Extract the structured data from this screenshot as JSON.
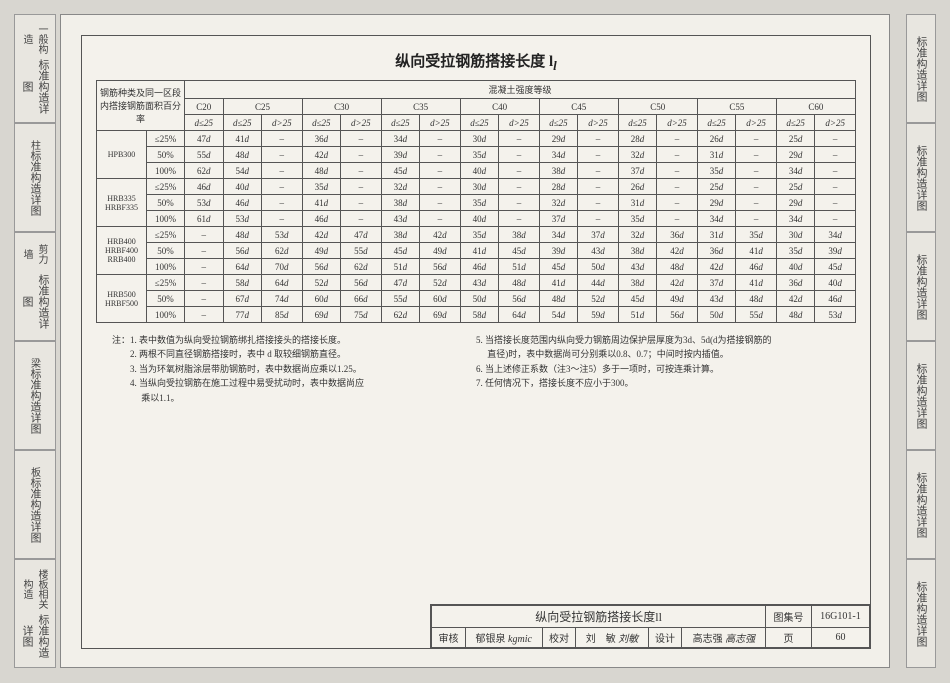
{
  "title_main": "纵向受拉钢筋搭接长度",
  "title_sym": "l",
  "title_sub": "l",
  "left_tabs": [
    {
      "main": "标准构造详图",
      "sub": "一般构造"
    },
    {
      "main": "标准构造详图",
      "sub": "柱"
    },
    {
      "main": "标准构造详图",
      "sub": "剪力墙"
    },
    {
      "main": "标准构造详图",
      "sub": "梁"
    },
    {
      "main": "标准构造详图",
      "sub": "板"
    },
    {
      "main": "标准构造详图",
      "sub": "楼板相关构造"
    }
  ],
  "right_tabs": [
    {
      "main": "标准构造详图"
    },
    {
      "main": "标准构造详图"
    },
    {
      "main": "标准构造详图"
    },
    {
      "main": "标准构造详图"
    },
    {
      "main": "标准构造详图"
    },
    {
      "main": "标准构造详图"
    }
  ],
  "header_label_1": "钢筋种类及同一区段内搭接钢筋面积百分率",
  "header_label_2": "混凝土强度等级",
  "grades": [
    "C20",
    "C25",
    "C30",
    "C35",
    "C40",
    "C45",
    "C50",
    "C55",
    "C60"
  ],
  "d_le": "d≤25",
  "d_gt": "d>25",
  "pct_25": "≤25%",
  "pct_50": "50%",
  "pct_100": "100%",
  "rows": [
    {
      "label": "HPB300",
      "pcts": [
        [
          "47d",
          "41d",
          "–",
          "36d",
          "–",
          "34d",
          "–",
          "30d",
          "–",
          "29d",
          "–",
          "28d",
          "–",
          "26d",
          "–",
          "25d",
          "–"
        ],
        [
          "55d",
          "48d",
          "–",
          "42d",
          "–",
          "39d",
          "–",
          "35d",
          "–",
          "34d",
          "–",
          "32d",
          "–",
          "31d",
          "–",
          "29d",
          "–"
        ],
        [
          "62d",
          "54d",
          "–",
          "48d",
          "–",
          "45d",
          "–",
          "40d",
          "–",
          "38d",
          "–",
          "37d",
          "–",
          "35d",
          "–",
          "34d",
          "–"
        ]
      ]
    },
    {
      "label": "HRB335\nHRBF335",
      "pcts": [
        [
          "46d",
          "40d",
          "–",
          "35d",
          "–",
          "32d",
          "–",
          "30d",
          "–",
          "28d",
          "–",
          "26d",
          "–",
          "25d",
          "–",
          "25d",
          "–"
        ],
        [
          "53d",
          "46d",
          "–",
          "41d",
          "–",
          "38d",
          "–",
          "35d",
          "–",
          "32d",
          "–",
          "31d",
          "–",
          "29d",
          "–",
          "29d",
          "–"
        ],
        [
          "61d",
          "53d",
          "–",
          "46d",
          "–",
          "43d",
          "–",
          "40d",
          "–",
          "37d",
          "–",
          "35d",
          "–",
          "34d",
          "–",
          "34d",
          "–"
        ]
      ]
    },
    {
      "label": "HRB400\nHRBF400\nRRB400",
      "pcts": [
        [
          "–",
          "48d",
          "53d",
          "42d",
          "47d",
          "38d",
          "42d",
          "35d",
          "38d",
          "34d",
          "37d",
          "32d",
          "36d",
          "31d",
          "35d",
          "30d",
          "34d"
        ],
        [
          "–",
          "56d",
          "62d",
          "49d",
          "55d",
          "45d",
          "49d",
          "41d",
          "45d",
          "39d",
          "43d",
          "38d",
          "42d",
          "36d",
          "41d",
          "35d",
          "39d"
        ],
        [
          "–",
          "64d",
          "70d",
          "56d",
          "62d",
          "51d",
          "56d",
          "46d",
          "51d",
          "45d",
          "50d",
          "43d",
          "48d",
          "42d",
          "46d",
          "40d",
          "45d"
        ]
      ]
    },
    {
      "label": "HRB500\nHRBF500",
      "pcts": [
        [
          "–",
          "58d",
          "64d",
          "52d",
          "56d",
          "47d",
          "52d",
          "43d",
          "48d",
          "41d",
          "44d",
          "38d",
          "42d",
          "37d",
          "41d",
          "36d",
          "40d"
        ],
        [
          "–",
          "67d",
          "74d",
          "60d",
          "66d",
          "55d",
          "60d",
          "50d",
          "56d",
          "48d",
          "52d",
          "45d",
          "49d",
          "43d",
          "48d",
          "42d",
          "46d"
        ],
        [
          "–",
          "77d",
          "85d",
          "69d",
          "75d",
          "62d",
          "69d",
          "58d",
          "64d",
          "54d",
          "59d",
          "51d",
          "56d",
          "50d",
          "55d",
          "48d",
          "53d"
        ]
      ]
    }
  ],
  "notes_left": [
    "注：1. 表中数值为纵向受拉钢筋绑扎搭接接头的搭接长度。",
    "　　2. 两根不同直径钢筋搭接时，表中 d 取较细钢筋直径。",
    "　　3. 当为环氧树脂涂层带肋钢筋时，表中数据尚应乘以1.25。",
    "　　4. 当纵向受拉钢筋在施工过程中易受扰动时，表中数据尚应",
    "　　　 乘以1.1。"
  ],
  "notes_right": [
    "5. 当搭接长度范围内纵向受力钢筋周边保护层厚度为3d、5d(d为搭接钢筋的",
    "　 直径)时，表中数据尚可分别乘以0.8、0.7；中间时按内插值。",
    "6. 当上述修正系数（注3～注5）多于一项时，可按连乘计算。",
    "7. 任何情况下，搭接长度不应小于300。"
  ],
  "footer": {
    "title": "纵向受拉钢筋搭接长度",
    "title_sym": "ll",
    "atlas_label": "图集号",
    "atlas_val": "16G101-1",
    "review_label": "审核",
    "review_val": "郁银泉",
    "review_sig": "kgmic",
    "check_label": "校对",
    "check_val": "刘　敏",
    "check_sig": "刘敏",
    "design_label": "设计",
    "design_val": "高志强",
    "design_sig": "高志强",
    "page_label": "页",
    "page_val": "60"
  }
}
